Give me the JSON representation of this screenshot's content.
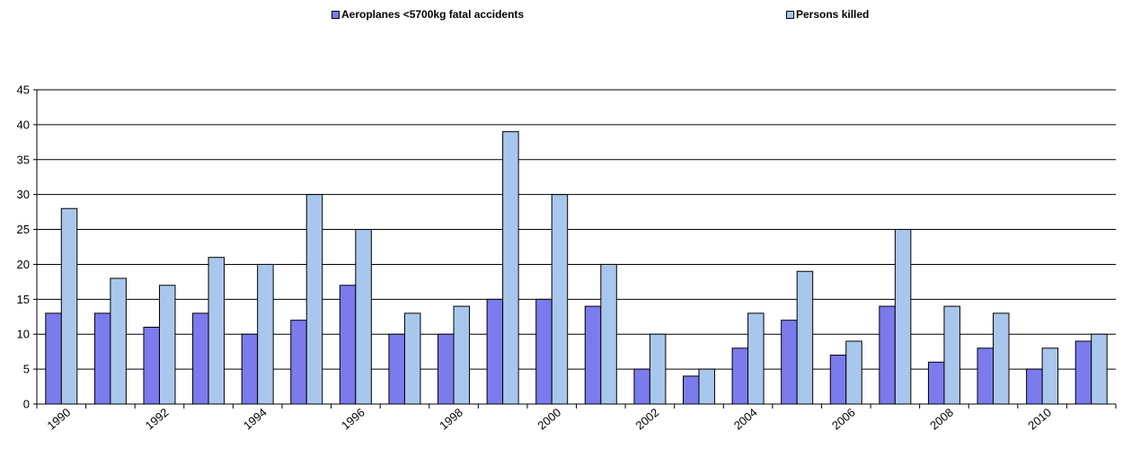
{
  "chart_data": {
    "type": "bar",
    "categories": [
      "1990",
      "1991",
      "1992",
      "1993",
      "1994",
      "1995",
      "1996",
      "1997",
      "1998",
      "1999",
      "2000",
      "2001",
      "2002",
      "2003",
      "2004",
      "2005",
      "2006",
      "2007",
      "2008",
      "2009",
      "2010",
      "2011"
    ],
    "x_tick_labels": [
      "1990",
      "",
      "1992",
      "",
      "1994",
      "",
      "1996",
      "",
      "1998",
      "",
      "2000",
      "",
      "2002",
      "",
      "2004",
      "",
      "2006",
      "",
      "2008",
      "",
      "2010",
      ""
    ],
    "series": [
      {
        "name": "Aeroplanes <5700kg fatal accidents",
        "color": "#7b7bee",
        "values": [
          13,
          13,
          11,
          13,
          10,
          12,
          17,
          10,
          10,
          15,
          15,
          14,
          5,
          4,
          8,
          12,
          7,
          14,
          6,
          8,
          5,
          9
        ]
      },
      {
        "name": "Persons killed",
        "color": "#a9c7ec",
        "values": [
          28,
          18,
          17,
          21,
          20,
          30,
          25,
          13,
          14,
          39,
          30,
          20,
          10,
          5,
          13,
          19,
          9,
          25,
          14,
          13,
          8,
          10
        ]
      }
    ],
    "ylim": [
      0,
      45
    ],
    "yticks": [
      0,
      5,
      10,
      15,
      20,
      25,
      30,
      35,
      40,
      45
    ],
    "grid": true,
    "legend_position": "top",
    "title": "",
    "xlabel": "",
    "ylabel": ""
  }
}
